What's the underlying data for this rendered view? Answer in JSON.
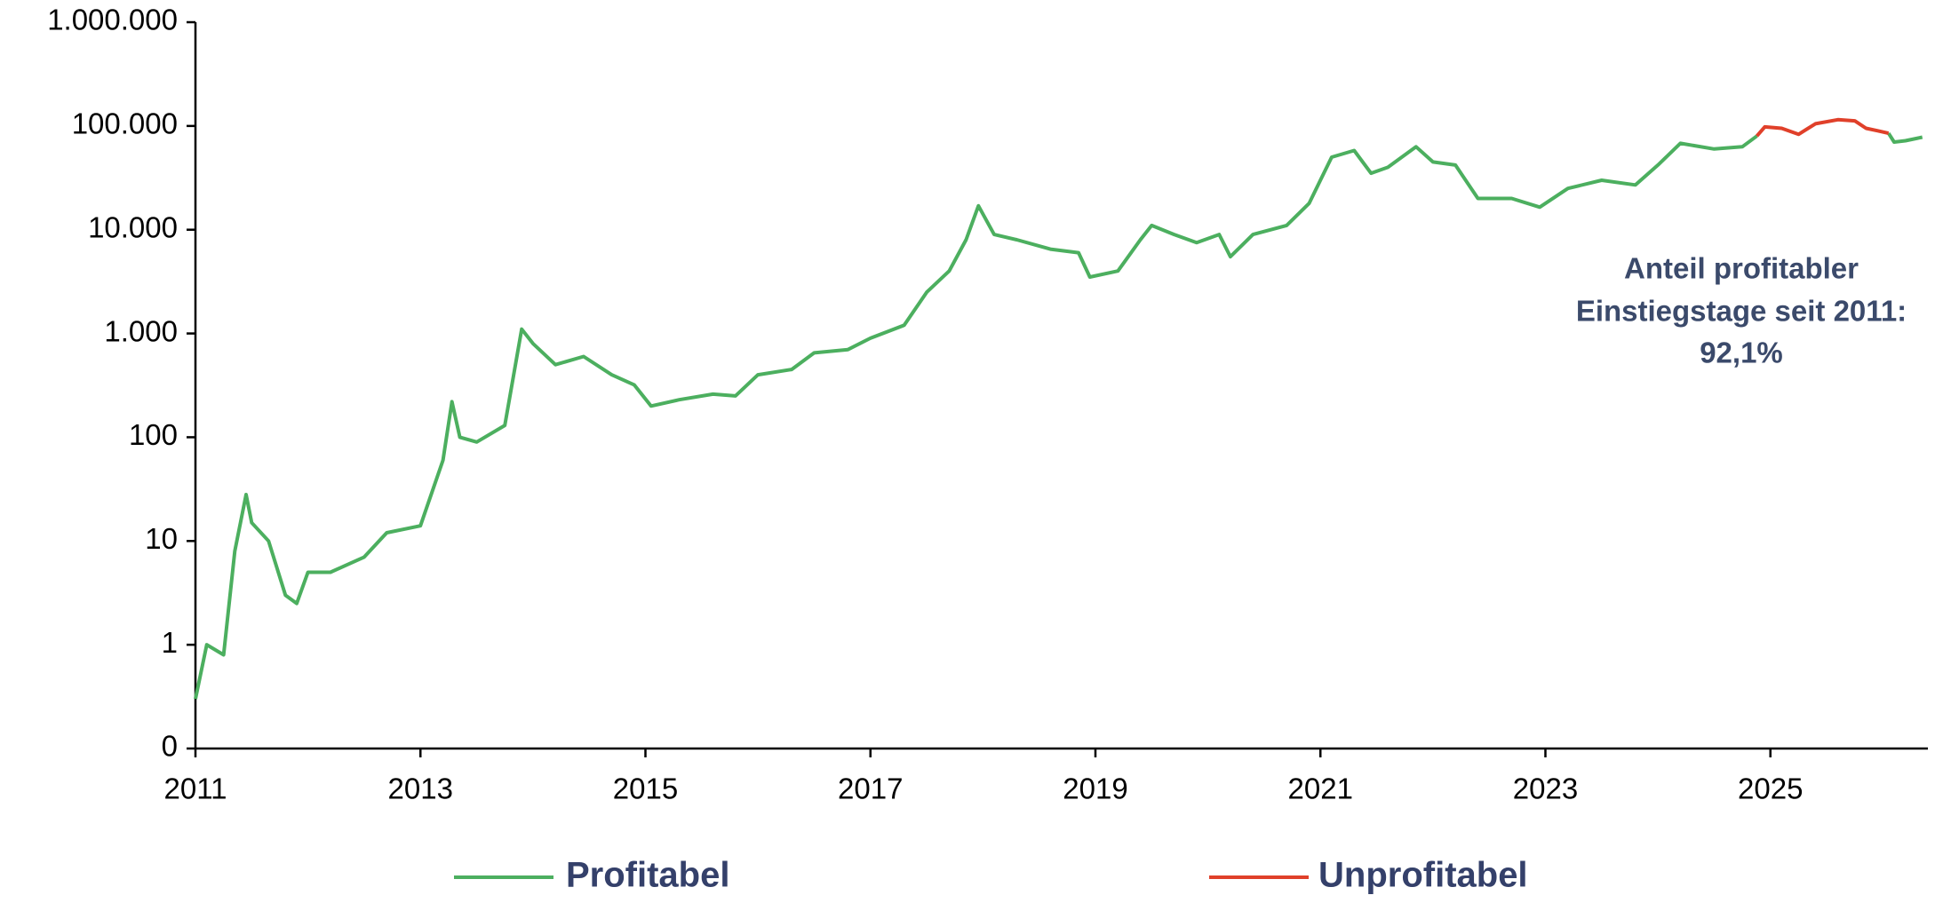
{
  "chart_data": {
    "type": "line",
    "log_scale_y": true,
    "grid": false,
    "annotation": [
      "Anteil profitabler",
      "Einstiegstage seit 2011:",
      "92,1%"
    ],
    "x": [
      2011.0,
      2011.1,
      2011.25,
      2011.35,
      2011.45,
      2011.5,
      2011.65,
      2011.8,
      2011.9,
      2012.0,
      2012.2,
      2012.5,
      2012.7,
      2013.0,
      2013.2,
      2013.28,
      2013.35,
      2013.5,
      2013.75,
      2013.9,
      2014.0,
      2014.2,
      2014.45,
      2014.7,
      2014.9,
      2015.05,
      2015.3,
      2015.6,
      2015.8,
      2016.0,
      2016.3,
      2016.5,
      2016.8,
      2017.0,
      2017.3,
      2017.5,
      2017.7,
      2017.85,
      2017.96,
      2018.1,
      2018.3,
      2018.6,
      2018.85,
      2018.95,
      2019.2,
      2019.4,
      2019.5,
      2019.7,
      2019.9,
      2020.1,
      2020.2,
      2020.4,
      2020.7,
      2020.9,
      2021.0,
      2021.1,
      2021.3,
      2021.45,
      2021.6,
      2021.85,
      2022.0,
      2022.2,
      2022.4,
      2022.7,
      2022.95,
      2023.2,
      2023.5,
      2023.8,
      2024.0,
      2024.2,
      2024.5,
      2024.75,
      2024.88,
      2024.95,
      2025.1,
      2025.25,
      2025.4,
      2025.6,
      2025.75,
      2025.85,
      2025.95,
      2026.05,
      2026.1,
      2026.2,
      2026.35
    ],
    "series": [
      {
        "name": "Profitabel",
        "color": "#4caf5f",
        "values": [
          0.3,
          1,
          0.8,
          8,
          28,
          15,
          10,
          3,
          2.5,
          5,
          5,
          7,
          12,
          14,
          60,
          220,
          100,
          90,
          130,
          1100,
          800,
          500,
          600,
          400,
          320,
          200,
          230,
          260,
          250,
          400,
          450,
          650,
          700,
          900,
          1200,
          2500,
          4000,
          8000,
          17000,
          9000,
          8000,
          6500,
          6000,
          3500,
          4000,
          8000,
          11000,
          9000,
          7500,
          9000,
          5500,
          9000,
          11000,
          18000,
          30000,
          50000,
          58000,
          35000,
          40000,
          63000,
          45000,
          42000,
          20000,
          20000,
          16500,
          25000,
          30000,
          27000,
          42000,
          68000,
          60000,
          63000,
          80000,
          null,
          null,
          null,
          null,
          null,
          null,
          null,
          null,
          85000,
          70000,
          72000,
          78000
        ]
      },
      {
        "name": "Unprofitabel",
        "color": "#e0402a",
        "values": [
          null,
          null,
          null,
          null,
          null,
          null,
          null,
          null,
          null,
          null,
          null,
          null,
          null,
          null,
          null,
          null,
          null,
          null,
          null,
          null,
          null,
          null,
          null,
          null,
          null,
          null,
          null,
          null,
          null,
          null,
          null,
          null,
          null,
          null,
          null,
          null,
          null,
          null,
          null,
          null,
          null,
          null,
          null,
          null,
          null,
          null,
          null,
          null,
          null,
          null,
          null,
          null,
          null,
          null,
          null,
          null,
          null,
          null,
          null,
          null,
          null,
          null,
          null,
          null,
          null,
          null,
          null,
          null,
          null,
          null,
          null,
          null,
          80000,
          98000,
          95000,
          83000,
          105000,
          115000,
          112000,
          95000,
          90000,
          85000,
          null,
          null,
          null
        ]
      }
    ],
    "xlim": [
      2011,
      2026.4
    ],
    "xticks": [
      2011,
      2013,
      2015,
      2017,
      2019,
      2021,
      2023,
      2025
    ],
    "ylim": [
      0.1,
      1000000
    ],
    "yticks": [
      {
        "value": 0.1,
        "label": "0"
      },
      1,
      10,
      100,
      {
        "value": 1000,
        "label": "1.000"
      },
      {
        "value": 10000,
        "label": "10.000"
      },
      {
        "value": 100000,
        "label": "100.000"
      },
      {
        "value": 1000000,
        "label": "1.000.000"
      }
    ]
  }
}
